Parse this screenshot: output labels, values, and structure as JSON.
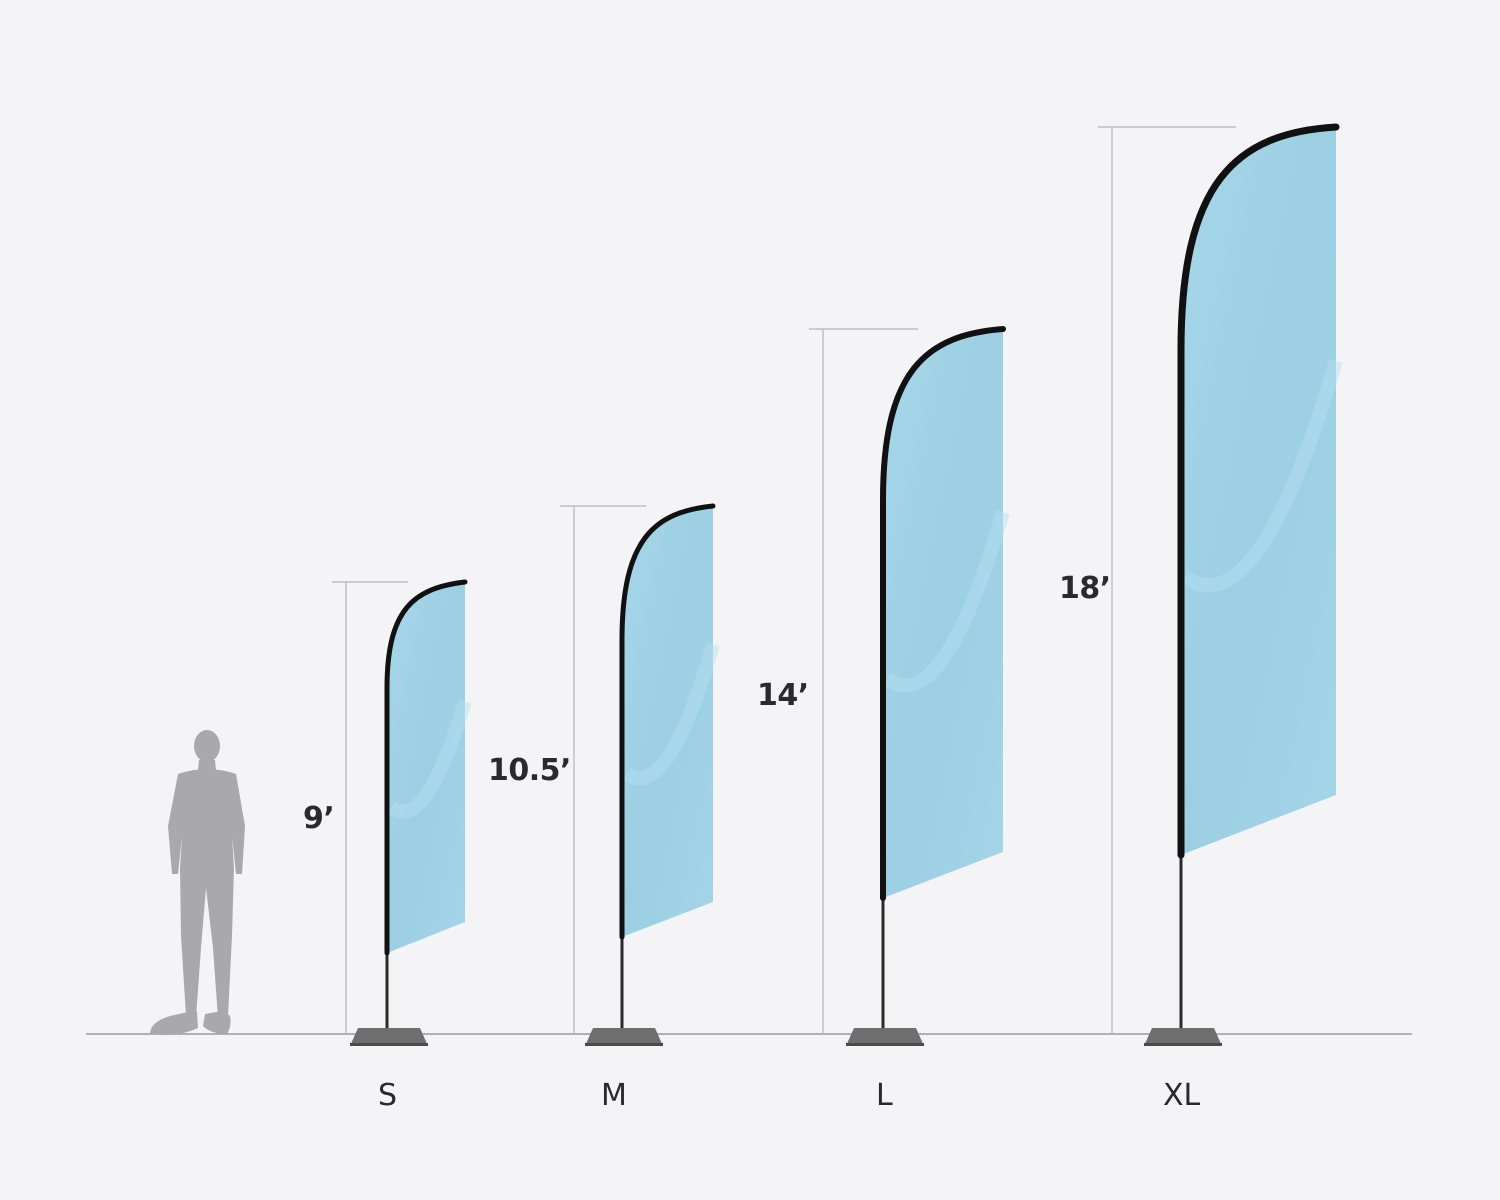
{
  "colors": {
    "background": "#f4f4f6",
    "flag_fabric": "#a0d2e6",
    "flag_edge": "#111111",
    "pole": "#2b2b2b",
    "base": "#6e6e6e",
    "silhouette": "#a9a9ab",
    "ground_line": "#9a9a9a",
    "measure_line": "#b5b5b5",
    "text": "#2a2a2a"
  },
  "icons": {
    "person": "human-silhouette-icon",
    "flag": "feather-flag-icon"
  },
  "flags": [
    {
      "size": "S",
      "height_label": "9’",
      "height_ft": 9
    },
    {
      "size": "M",
      "height_label": "10.5’",
      "height_ft": 10.5
    },
    {
      "size": "L",
      "height_label": "14’",
      "height_ft": 14
    },
    {
      "size": "XL",
      "height_label": "18’",
      "height_ft": 18
    }
  ]
}
